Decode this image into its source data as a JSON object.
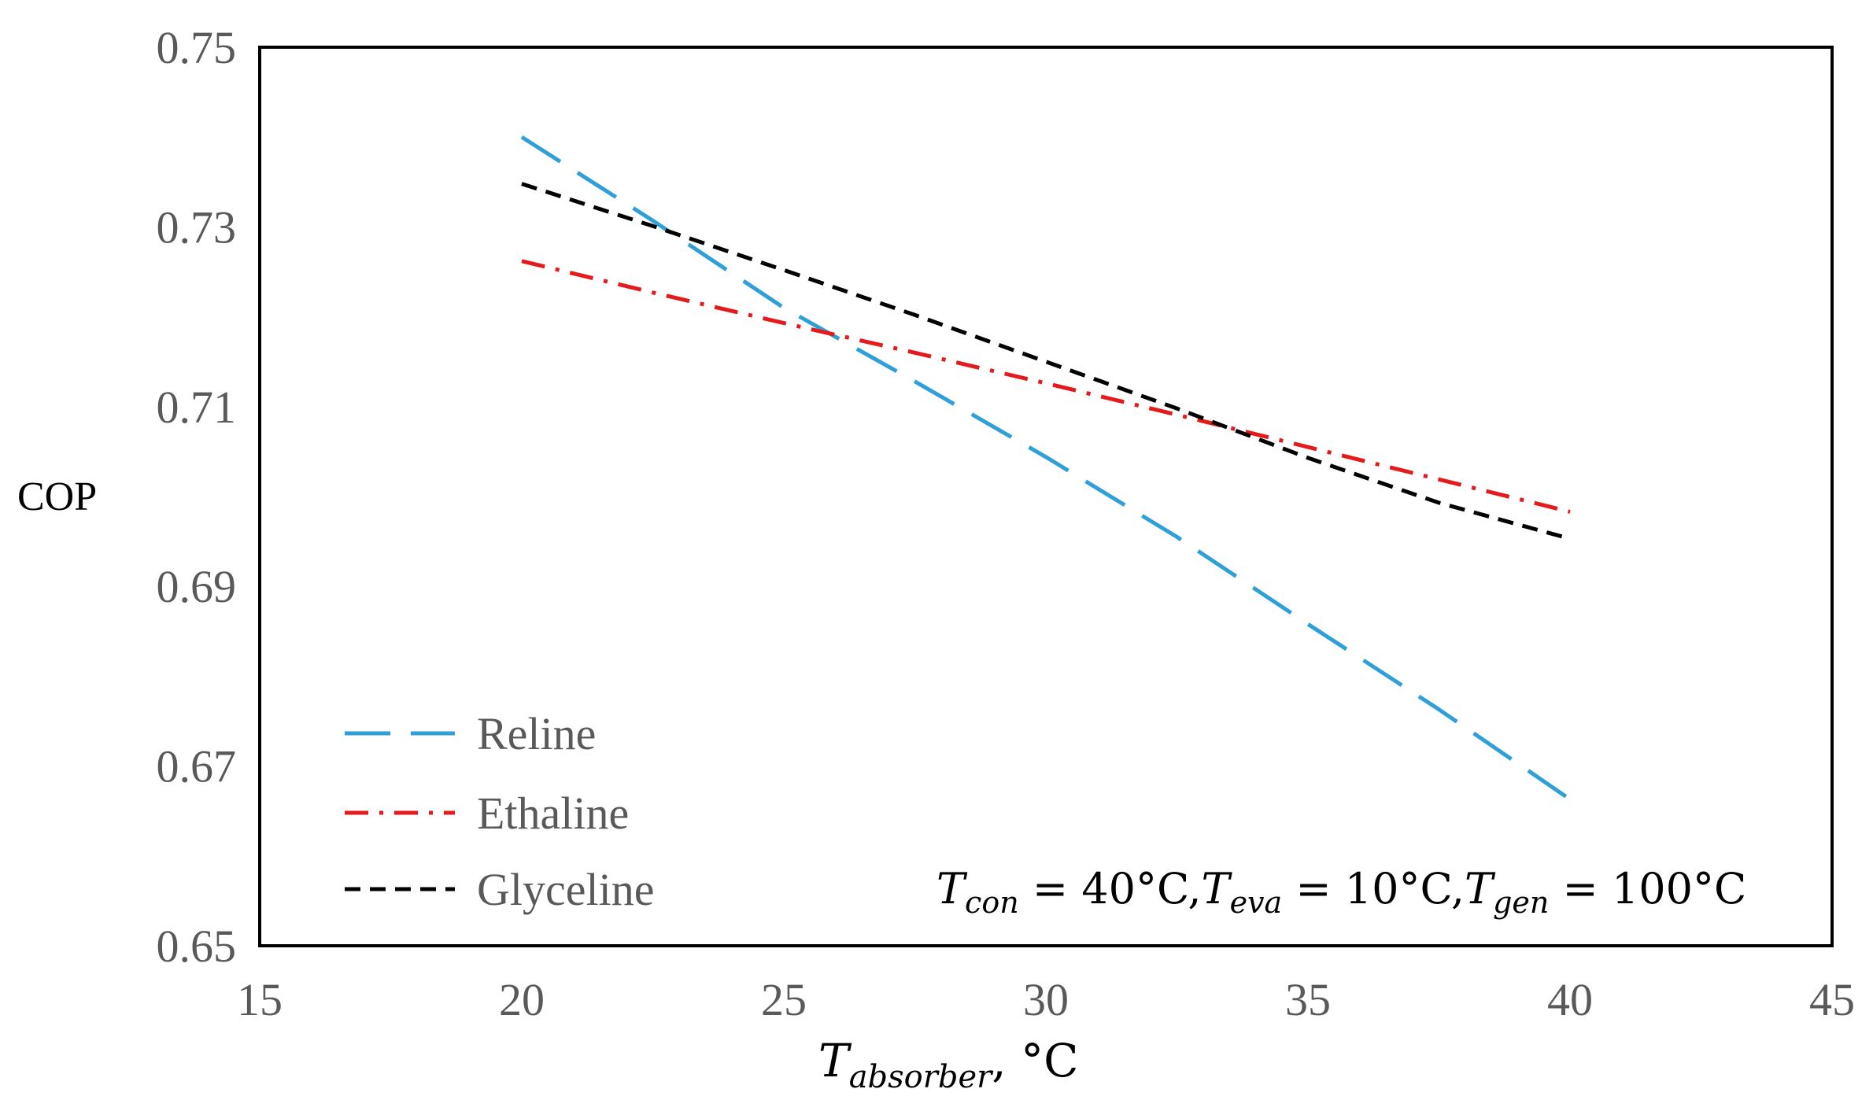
{
  "chart_data": {
    "type": "line",
    "title": "",
    "xlabel": {
      "symbol": "T",
      "subscript": "absorber",
      "unit": ", °C"
    },
    "ylabel": "COP",
    "xlim": [
      15,
      45
    ],
    "ylim": [
      0.65,
      0.75
    ],
    "xticks": [
      "15",
      "20",
      "25",
      "30",
      "35",
      "40",
      "45"
    ],
    "yticks": [
      "0.65",
      "0.67",
      "0.69",
      "0.71",
      "0.73",
      "0.75"
    ],
    "grid": false,
    "legend_position": "bottom-left",
    "series": [
      {
        "name": "Reline",
        "color": "#2E9FD9",
        "dash": "long-dash",
        "x": [
          20,
          22.5,
          25,
          27.5,
          30,
          32.5,
          35,
          37.5,
          40
        ],
        "y": [
          0.74,
          0.7307,
          0.721,
          0.7128,
          0.7044,
          0.6955,
          0.6858,
          0.6763,
          0.6663
        ]
      },
      {
        "name": "Ethaline",
        "color": "#E41A1C",
        "dash": "dash-dot",
        "x": [
          20,
          22.5,
          25,
          27.5,
          30,
          32.5,
          35,
          37.5,
          40
        ],
        "y": [
          0.7262,
          0.7227,
          0.7193,
          0.716,
          0.7126,
          0.7091,
          0.7055,
          0.7019,
          0.6983
        ]
      },
      {
        "name": "Glyceline",
        "color": "#000000",
        "dash": "short-dash",
        "x": [
          20,
          22.5,
          25,
          27.5,
          30,
          32.5,
          35,
          37.5,
          40
        ],
        "y": [
          0.7348,
          0.7301,
          0.7252,
          0.7202,
          0.715,
          0.7098,
          0.7043,
          0.6993,
          0.6953
        ]
      }
    ],
    "annotation": {
      "parts": [
        {
          "base": "T",
          "sub": "con",
          "rest": " = 40°C,"
        },
        {
          "base": "T",
          "sub": "eva",
          "rest": " = 10°C,"
        },
        {
          "base": "T",
          "sub": "gen",
          "rest": " = 100°C"
        }
      ]
    }
  }
}
